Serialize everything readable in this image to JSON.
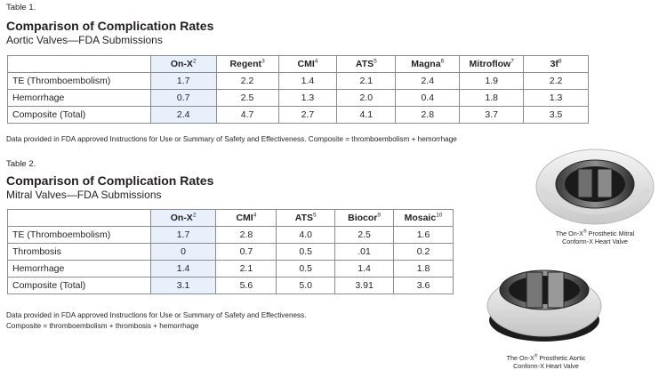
{
  "table1": {
    "label": "Table 1.",
    "title": "Comparison of Complication Rates",
    "subtitle": "Aortic Valves—FDA Submissions",
    "columns": [
      {
        "name": "On-X",
        "sup": "2"
      },
      {
        "name": "Regent",
        "sup": "3"
      },
      {
        "name": "CMI",
        "sup": "4"
      },
      {
        "name": "ATS",
        "sup": "5"
      },
      {
        "name": "Magna",
        "sup": "6"
      },
      {
        "name": "Mitroflow",
        "sup": "7"
      },
      {
        "name": "3f",
        "sup": "8"
      }
    ],
    "rows": [
      {
        "name": "TE (Thromboembolism)",
        "values": [
          "1.7",
          "2.2",
          "1.4",
          "2.1",
          "2.4",
          "1.9",
          "2.2"
        ]
      },
      {
        "name": "Hemorrhage",
        "values": [
          "0.7",
          "2.5",
          "1.3",
          "2.0",
          "0.4",
          "1.8",
          "1.3"
        ]
      },
      {
        "name": "Composite (Total)",
        "values": [
          "2.4",
          "4.7",
          "2.7",
          "4.1",
          "2.8",
          "3.7",
          "3.5"
        ]
      }
    ],
    "note": "Data provided in FDA approved Instructions for Use or Summary of Safety and Effectiveness.  Composite = thromboembolism + hemorrhage"
  },
  "table2": {
    "label": "Table 2.",
    "title": "Comparison of Complication Rates",
    "subtitle": "Mitral Valves—FDA Submissions",
    "columns": [
      {
        "name": "On-X",
        "sup": "2"
      },
      {
        "name": "CMI",
        "sup": "4"
      },
      {
        "name": "ATS",
        "sup": "5"
      },
      {
        "name": "Biocor",
        "sup": "9"
      },
      {
        "name": "Mosaic",
        "sup": "10"
      }
    ],
    "rows": [
      {
        "name": "TE (Thromboembolism)",
        "values": [
          "1.7",
          "2.8",
          "4.0",
          "2.5",
          "1.6"
        ]
      },
      {
        "name": "Thrombosis",
        "values": [
          "0",
          "0.7",
          "0.5",
          ".01",
          "0.2"
        ]
      },
      {
        "name": "Hemorrhage",
        "values": [
          "1.4",
          "2.1",
          "0.5",
          "1.4",
          "1.8"
        ]
      },
      {
        "name": "Composite (Total)",
        "values": [
          "3.1",
          "5.6",
          "5.0",
          "3.91",
          "3.6"
        ]
      }
    ],
    "note_line1": "Data provided in FDA approved Instructions for Use or Summary of Safety and Effectiveness.",
    "note_line2": "Composite = thromboembolism + thrombosis + hemorrhage"
  },
  "images": {
    "mitral": {
      "caption_pre": "The On-X",
      "caption_reg": "®",
      "caption_post": " Prosthetic Mitral",
      "caption_line2": "Conform-X Heart Valve"
    },
    "aortic": {
      "caption_pre": "The On-X",
      "caption_reg": "®",
      "caption_post": " Prosthetic Aortic",
      "caption_line2": "Conform-X Heart Valve"
    }
  },
  "colors": {
    "highlight": "#e8f1fb",
    "border": "#8a8c8e",
    "text": "#231f20"
  }
}
